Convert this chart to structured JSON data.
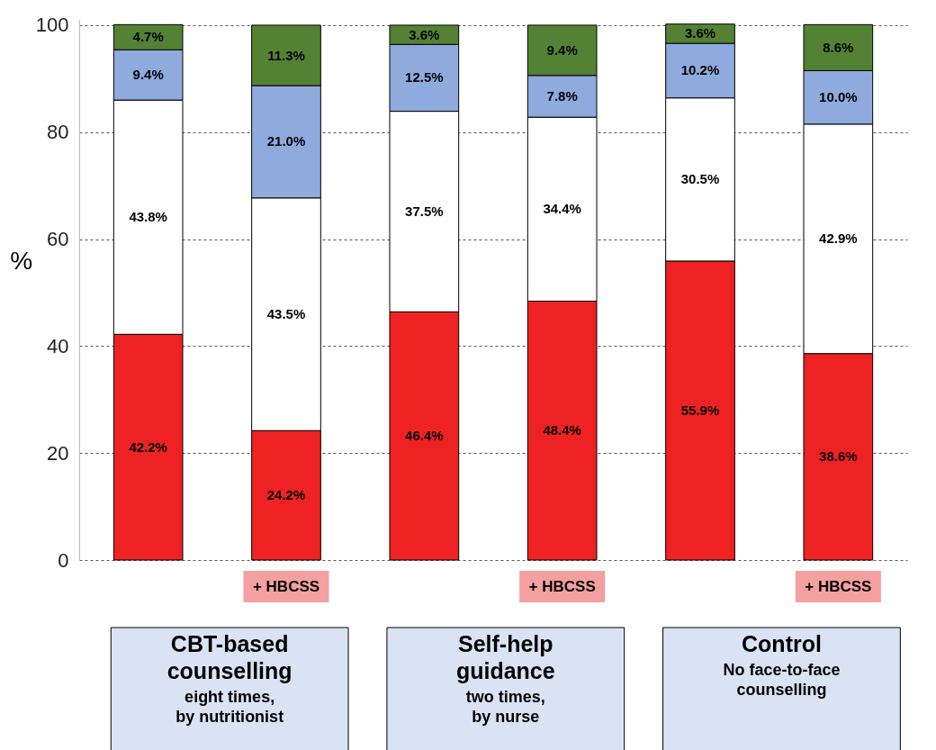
{
  "chart_data": {
    "type": "bar",
    "stacked": true,
    "categories": [
      null,
      "+ HBCSS",
      null,
      "+ HBCSS",
      null,
      "+ HBCSS"
    ],
    "ylabel": "%",
    "ylim": [
      0,
      101
    ],
    "yticks": [
      0,
      20,
      40,
      60,
      80,
      100
    ],
    "grid": "y",
    "series": [
      {
        "color": "#ee2222",
        "values": [
          42.2,
          24.2,
          46.4,
          48.4,
          55.9,
          38.6
        ],
        "value_labels": [
          "42.2%",
          "24.2%",
          "46.4%",
          "48.4%",
          "55.9%",
          "38.6%"
        ]
      },
      {
        "color": "#ffffff",
        "values": [
          43.8,
          43.5,
          37.5,
          34.4,
          30.5,
          42.9
        ],
        "value_labels": [
          "43.8%",
          "43.5%",
          "37.5%",
          "34.4%",
          "30.5%",
          "42.9%"
        ]
      },
      {
        "color": "#8faadc",
        "values": [
          9.4,
          21.0,
          12.5,
          7.8,
          10.2,
          10.0
        ],
        "value_labels": [
          "9.4%",
          "21.0%",
          "12.5%",
          "7.8%",
          "10.2%",
          "10.0%"
        ]
      },
      {
        "color": "#548235",
        "values": [
          4.7,
          11.3,
          3.6,
          9.4,
          3.6,
          8.6
        ],
        "value_labels": [
          "4.7%",
          "11.3%",
          "3.6%",
          "9.4%",
          "3.6%",
          "8.6%"
        ]
      }
    ],
    "annotations": [
      "CBT-based\ncounselling",
      "eight times,\nby nutritionist",
      "Self-help\nguidance",
      "two times,\nby nurse",
      "Control",
      "No face-to-face\ncounselling"
    ]
  }
}
